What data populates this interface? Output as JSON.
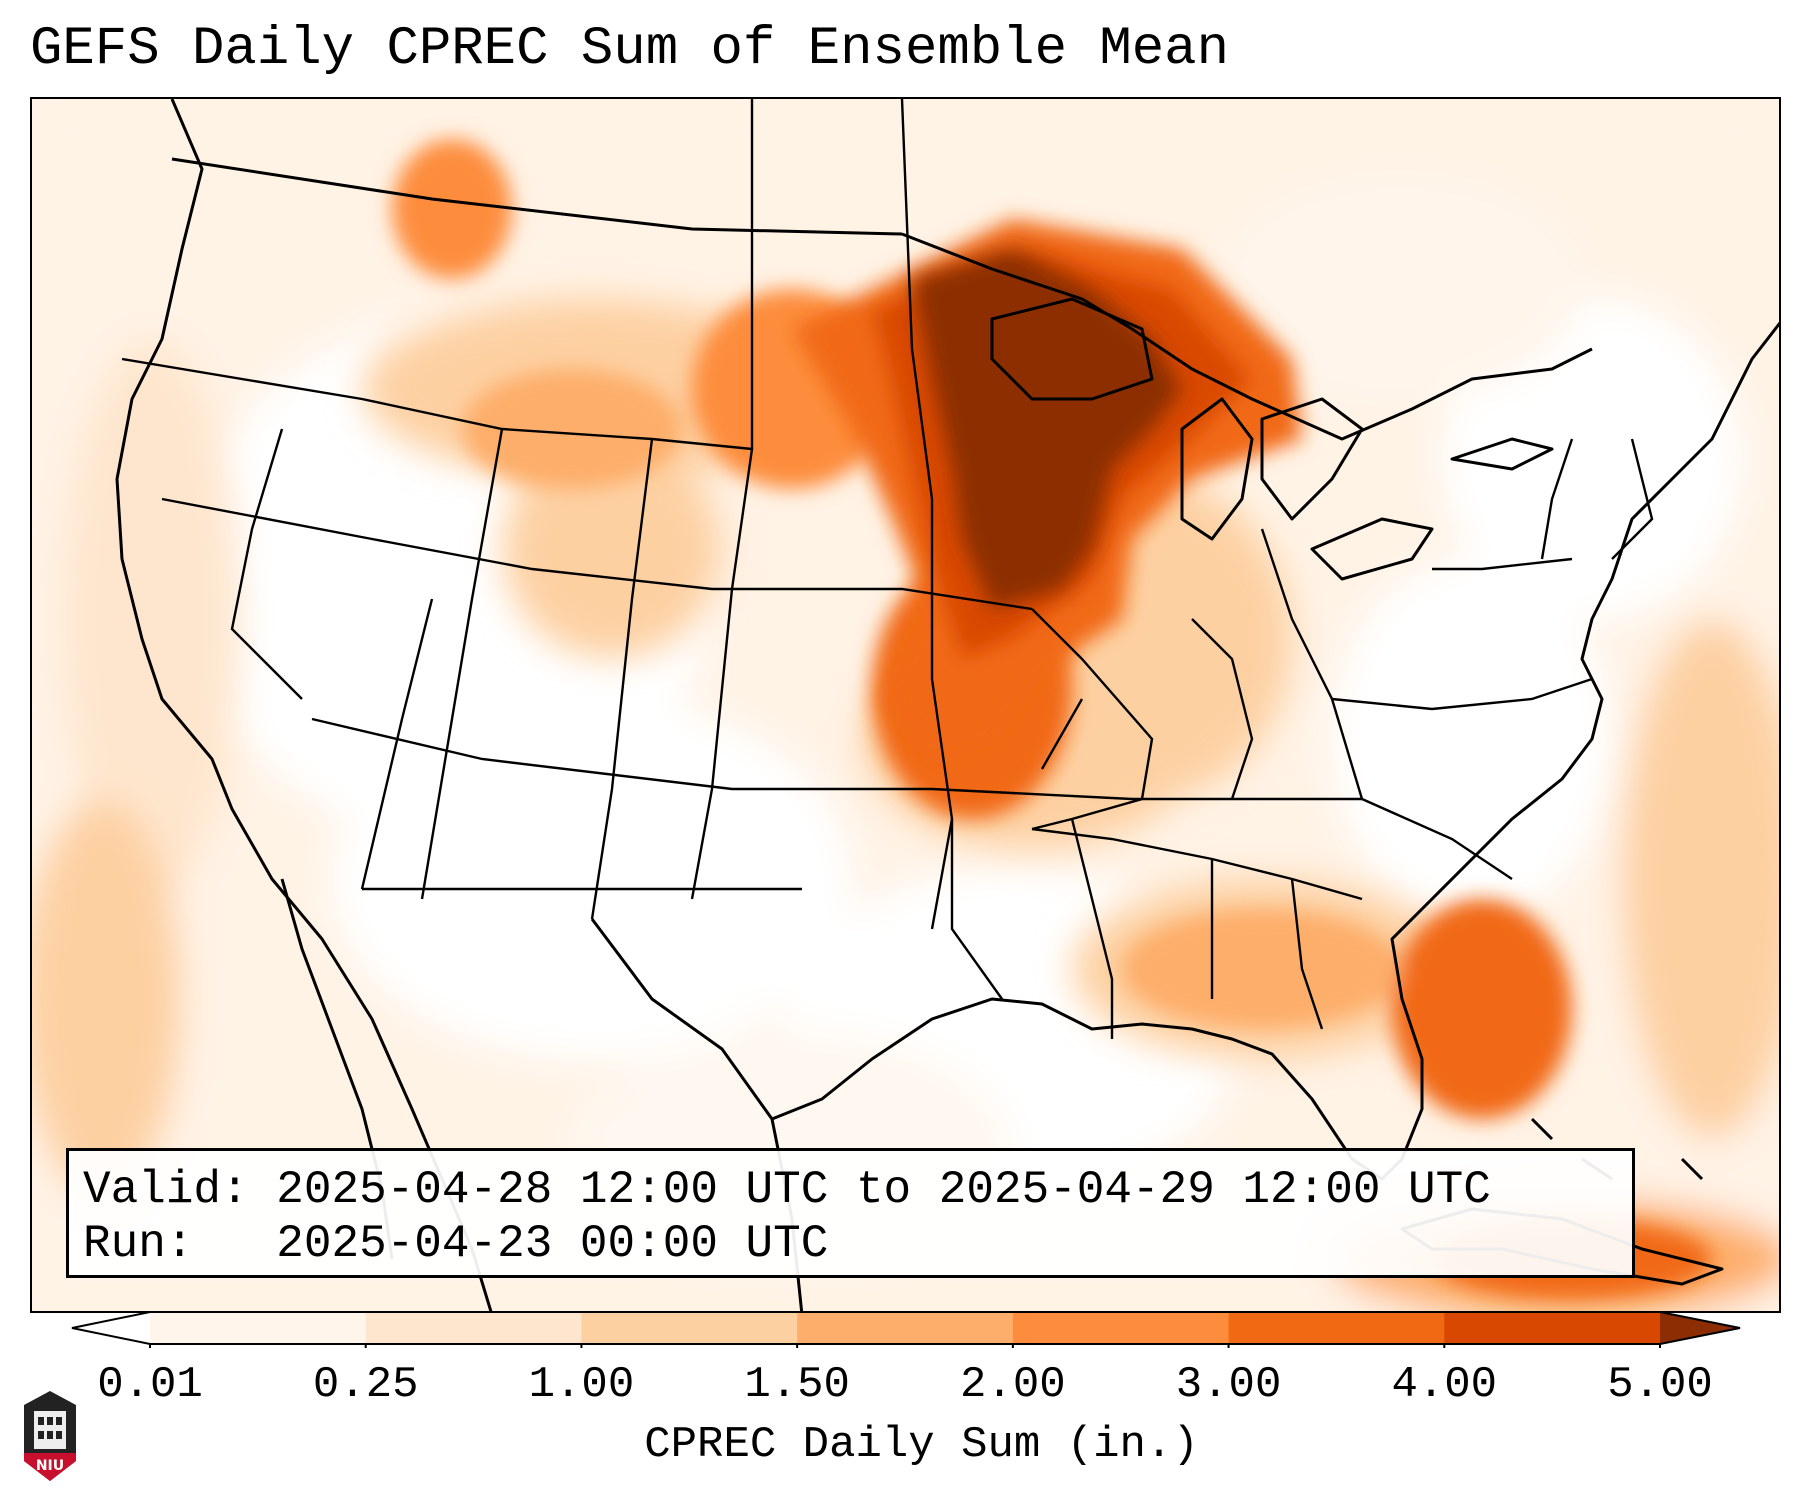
{
  "title": "GEFS Daily CPREC Sum of Ensemble Mean",
  "info": {
    "valid_label": "Valid:",
    "valid_value": "2025-04-28 12:00 UTC to 2025-04-29 12:00 UTC",
    "run_label": "Run:",
    "run_value": "2025-04-23 00:00 UTC"
  },
  "colorbar": {
    "label": "CPREC Daily Sum (in.)",
    "ticks": [
      "0.01",
      "0.25",
      "1.00",
      "1.50",
      "2.00",
      "3.00",
      "4.00",
      "5.00"
    ],
    "colors": [
      "#fff5eb",
      "#fee6ce",
      "#fdd0a2",
      "#fdae6b",
      "#fd8d3c",
      "#f16913",
      "#d94801",
      "#8c2d04"
    ]
  },
  "logo": {
    "text": "NIU"
  },
  "icons": {
    "logo": "university-seal-icon"
  }
}
